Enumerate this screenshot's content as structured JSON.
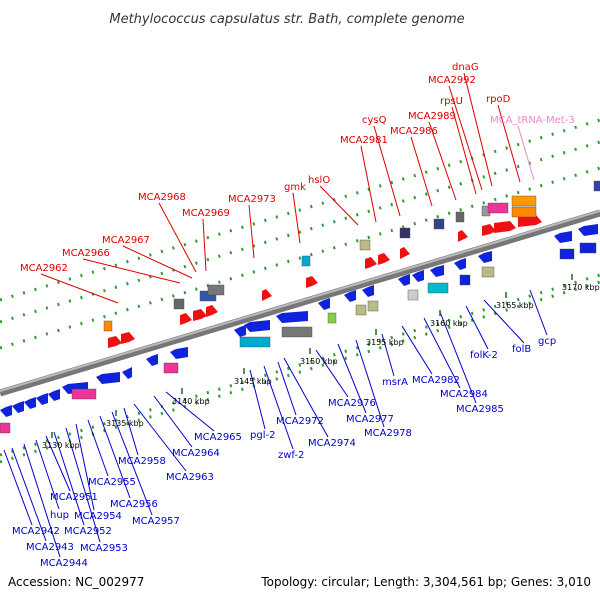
{
  "title": "Methylococcus capsulatus str. Bath, complete genome",
  "footer": {
    "accession": "Accession: NC_002977",
    "summary": "Topology: circular; Length: 3,304,561 bp; Genes: 3,010"
  },
  "colors": {
    "forward_label": "#dd0000",
    "reverse_label": "#0000cc",
    "rna_label": "#ee88cc",
    "backbone": "#888888",
    "dots": "#339933"
  },
  "scale_ticks": [
    "3130 kbp",
    "3135 kbp",
    "3140 kbp",
    "3145 kbp",
    "3150 kbp",
    "3155 kbp",
    "3160 kbp",
    "3165 kbp",
    "3170 kbp"
  ],
  "top_labels": [
    "MCA2962",
    "MCA2966",
    "MCA2967",
    "MCA2968",
    "MCA2969",
    "MCA2973",
    "gmk",
    "hslO",
    "MCA2981",
    "cysQ",
    "MCA2986",
    "MCA2989",
    "rpsU",
    "MCA2992",
    "dnaG",
    "rpoD",
    "MCA_tRNA-Met-3"
  ],
  "bottom_labels": [
    "MCA2942",
    "MCA2943",
    "MCA2944",
    "hup",
    "MCA2951",
    "MCA2952",
    "MCA2953",
    "MCA2954",
    "MCA2955",
    "MCA2956",
    "MCA2957",
    "MCA2958",
    "MCA2963",
    "MCA2964",
    "MCA2965",
    "pgl-2",
    "zwf-2",
    "MCA2972",
    "MCA2974",
    "MCA2976",
    "MCA2977",
    "MCA2978",
    "msrA",
    "MCA2982",
    "MCA2984",
    "MCA2985",
    "folK-2",
    "folB",
    "gcp"
  ]
}
